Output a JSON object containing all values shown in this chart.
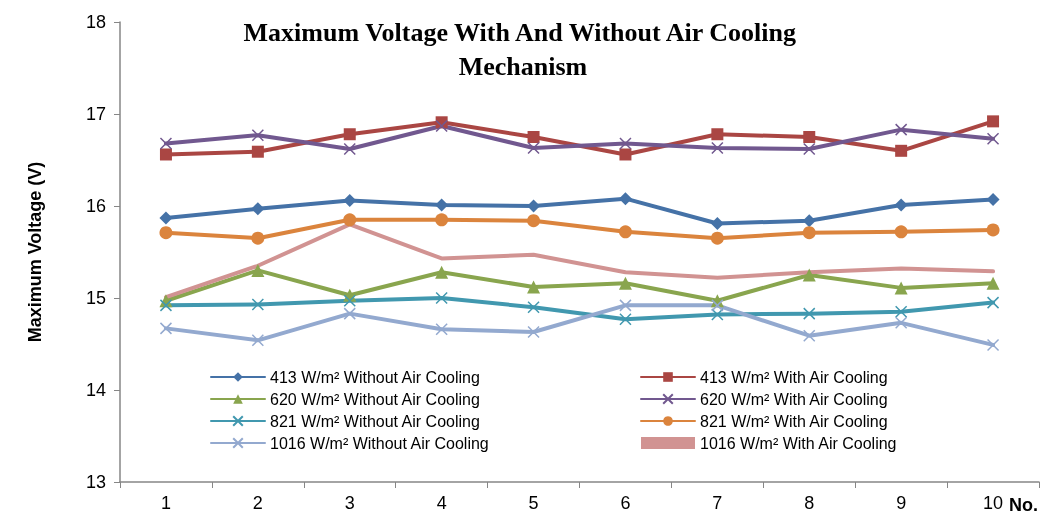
{
  "chart_data": {
    "type": "line",
    "title": "Maximum Voltage With And Without Air Cooling Mechanism",
    "xlabel": "No.",
    "ylabel": "Maximum Voltage (V)",
    "categories": [
      "1",
      "2",
      "3",
      "4",
      "5",
      "6",
      "7",
      "8",
      "9",
      "10"
    ],
    "ylim": [
      13,
      18
    ],
    "yticks": [
      13,
      14,
      15,
      16,
      17,
      18
    ],
    "grid": false,
    "legend": "bottom",
    "series": [
      {
        "name": "413 W/m² Without Air Cooling",
        "color": "#4572a7",
        "marker": "diamond",
        "values": [
          15.87,
          15.97,
          16.06,
          16.01,
          16.0,
          16.08,
          15.81,
          15.84,
          16.01,
          16.07
        ]
      },
      {
        "name": "413 W/m² With Air Cooling",
        "color": "#aa4643",
        "marker": "square",
        "values": [
          16.56,
          16.59,
          16.78,
          16.91,
          16.75,
          16.56,
          16.78,
          16.75,
          16.6,
          16.92
        ]
      },
      {
        "name": "620 W/m² Without Air Cooling",
        "color": "#89a54e",
        "marker": "triangle",
        "values": [
          14.97,
          15.3,
          15.03,
          15.28,
          15.12,
          15.16,
          14.97,
          15.25,
          15.11,
          15.16
        ]
      },
      {
        "name": "620 W/m² With Air Cooling",
        "color": "#71588f",
        "marker": "cross",
        "values": [
          16.68,
          16.77,
          16.62,
          16.87,
          16.63,
          16.68,
          16.63,
          16.62,
          16.83,
          16.73
        ]
      },
      {
        "name": "821 W/m² Without Air Cooling",
        "color": "#4198af",
        "marker": "cross",
        "values": [
          14.92,
          14.93,
          14.97,
          15.0,
          14.9,
          14.77,
          14.82,
          14.83,
          14.85,
          14.95
        ]
      },
      {
        "name": "821 W/m² With Air Cooling",
        "color": "#db843d",
        "marker": "circle",
        "values": [
          15.71,
          15.65,
          15.85,
          15.85,
          15.84,
          15.72,
          15.65,
          15.71,
          15.72,
          15.74
        ]
      },
      {
        "name": "1016 W/m² Without Air Cooling",
        "color": "#93a9cf",
        "marker": "cross",
        "values": [
          14.67,
          14.54,
          14.83,
          14.66,
          14.63,
          14.92,
          14.92,
          14.59,
          14.73,
          14.49
        ]
      },
      {
        "name": "1016 W/m² With Air Cooling",
        "color": "#d19392",
        "marker": "none",
        "values": [
          15.01,
          15.35,
          15.8,
          15.43,
          15.47,
          15.28,
          15.22,
          15.28,
          15.32,
          15.29
        ]
      }
    ]
  }
}
